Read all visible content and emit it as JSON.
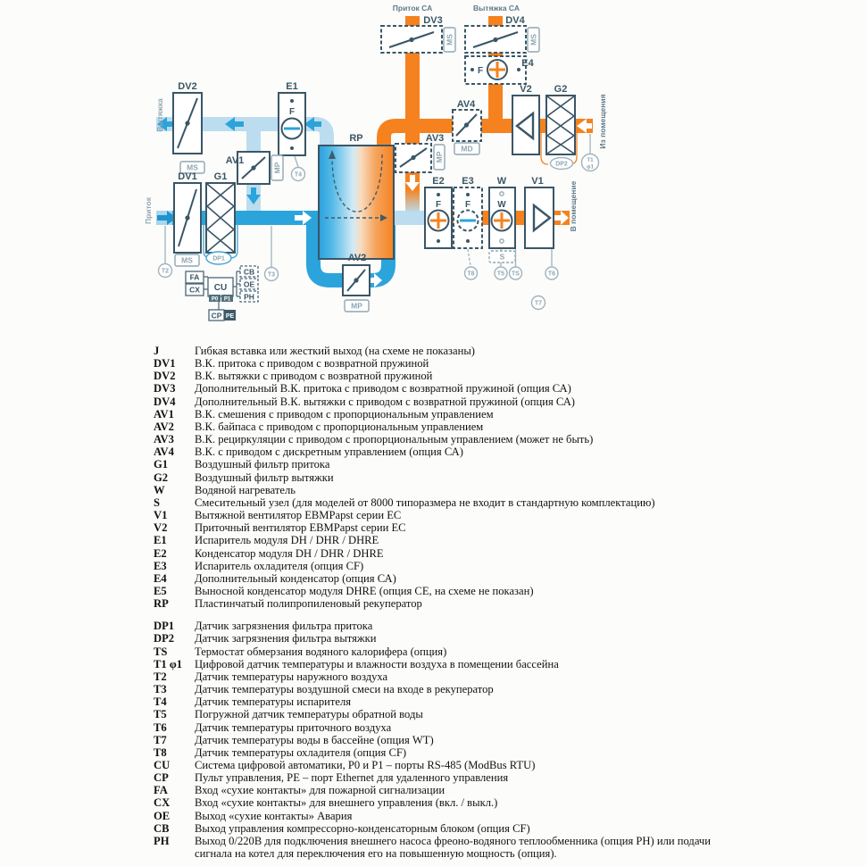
{
  "colors": {
    "pipe_orange": "#F5821F",
    "pipe_blue": "#2BA4DC",
    "pipe_pale_blue": "#BBDDEF",
    "outline_dark": "#3A5666",
    "outline_gray": "#8FA6B2"
  },
  "diagram": {
    "flow": {
      "supply_sa": "Приток СА",
      "exhaust_sa": "Вытяжка СА",
      "exhaust": "Вытяжка",
      "supply": "Приток",
      "from_room": "Из помещения",
      "to_room": "В помещение"
    },
    "labels": {
      "dv1": "DV1",
      "dv2": "DV2",
      "dv3": "DV3",
      "dv4": "DV4",
      "av1": "AV1",
      "av2": "AV2",
      "av3": "AV3",
      "av4": "AV4",
      "g1": "G1",
      "g2": "G2",
      "e1": "E1",
      "e2": "E2",
      "e3": "E3",
      "e4": "E4",
      "v1": "V1",
      "v2": "V2",
      "w": "W",
      "rp": "RP"
    },
    "ports": {
      "ms": "MS",
      "mp": "MP",
      "md": "MD",
      "s": "S"
    },
    "letters": {
      "f": "F",
      "w": "W"
    },
    "sensors": {
      "dp1": "DP1",
      "dp2": "DP2",
      "t1": "T1",
      "phi1": "φ1",
      "t2": "T2",
      "t3": "T3",
      "t4": "T4",
      "t5": "T5",
      "t6": "T6",
      "t7": "T7",
      "t8": "T8",
      "ts": "TS"
    },
    "control": {
      "cu": "CU",
      "cp": "CP",
      "fa": "FA",
      "cx": "CX",
      "cb": "CB",
      "oe": "OE",
      "ph": "PH",
      "p0": "P0",
      "p1": "P1",
      "pe": "PE"
    }
  },
  "legend": {
    "groups": [
      {
        "rows": [
          {
            "key": "J",
            "desc": "Гибкая вставка или жесткий выход (на схеме не показаны)"
          },
          {
            "key": "DV1",
            "desc": "В.К. притока с приводом с возвратной пружиной"
          },
          {
            "key": "DV2",
            "desc": "В.К. вытяжки с приводом с возвратной пружиной"
          },
          {
            "key": "DV3",
            "desc": "Дополнительный В.К. притока с приводом с возвратной пружиной (опция СА)"
          },
          {
            "key": "DV4",
            "desc": "Дополнительный В.К. вытяжки с приводом с возвратной пружиной (опция СА)"
          },
          {
            "key": "AV1",
            "desc": "В.К. смешения с приводом с пропорциональным управлением"
          },
          {
            "key": "AV2",
            "desc": "В.К. байпаса с приводом с пропорциональным управлением"
          },
          {
            "key": "AV3",
            "desc": "В.К. рециркуляции с приводом с пропорциональным управлением (может не быть)"
          },
          {
            "key": "AV4",
            "desc": "В.К. с приводом с дискретным управлением (опция СА)"
          },
          {
            "key": "G1",
            "desc": "Воздушный фильтр притока"
          },
          {
            "key": "G2",
            "desc": "Воздушный фильтр вытяжки"
          },
          {
            "key": "W",
            "desc": "Водяной нагреватель"
          },
          {
            "key": "S",
            "desc": "Смесительный узел (для моделей от 8000 типоразмера не входит в стандартную комплектацию)"
          },
          {
            "key": "V1",
            "desc": "Вытяжной вентилятор EBMPapst серии ЕС"
          },
          {
            "key": "V2",
            "desc": "Приточный вентилятор EBMPapst серии ЕС"
          },
          {
            "key": "E1",
            "desc": "Испаритель модуля DH / DHR / DHRE"
          },
          {
            "key": "E2",
            "desc": "Конденсатор модуля DH / DHR / DHRE"
          },
          {
            "key": "E3",
            "desc": "Испаритель охладителя (опция CF)"
          },
          {
            "key": "E4",
            "desc": "Дополнительный конденсатор (опция СА)"
          },
          {
            "key": "E5",
            "desc": "Выносной конденсатор модуля DHRE (опция СЕ, на схеме не показан)"
          },
          {
            "key": "RP",
            "desc": "Пластинчатый полипропиленовый рекуператор"
          }
        ]
      },
      {
        "rows": [
          {
            "key": "DP1",
            "desc": "Датчик загрязнения фильтра притока"
          },
          {
            "key": "DP2",
            "desc": "Датчик загрязнения фильтра вытяжки"
          },
          {
            "key": "TS",
            "desc": "Термостат обмерзания водяного калорифера (опция)"
          },
          {
            "key": "T1 φ1",
            "desc": "Цифровой датчик температуры и влажности воздуха в помещении бассейна"
          },
          {
            "key": "T2",
            "desc": "Датчик температуры наружного воздуха"
          },
          {
            "key": "T3",
            "desc": "Датчик температуры воздушной смеси на входе в рекуператор"
          },
          {
            "key": "T4",
            "desc": "Датчик температуры испарителя"
          },
          {
            "key": "T5",
            "desc": "Погружной датчик температуры обратной воды"
          },
          {
            "key": "T6",
            "desc": "Датчик температуры приточного воздуха"
          },
          {
            "key": "T7",
            "desc": "Датчик температуры воды в бассейне (опция WT)"
          },
          {
            "key": "T8",
            "desc": "Датчик температуры охладителя (опция CF)"
          },
          {
            "key": "CU",
            "desc": "Система цифровой автоматики, P0 и P1 – порты RS-485 (ModBus RTU)"
          },
          {
            "key": "CP",
            "desc": "Пульт управления, PE – порт Ethernet для удаленного управления"
          },
          {
            "key": "FA",
            "desc": "Вход «сухие контакты» для пожарной сигнализации"
          },
          {
            "key": "CX",
            "desc": "Вход «сухие контакты» для внешнего управления (вкл. / выкл.)"
          },
          {
            "key": "OE",
            "desc": "Выход «сухие контакты» Авария"
          },
          {
            "key": "CB",
            "desc": "Выход управления компрессорно-конденсаторным блоком (опция CF)"
          },
          {
            "key": "PH",
            "desc": "Выход 0/220В для подключения внешнего насоса фреоно-водяного теплообменника (опция РН) или подачи",
            "desc2": "сигнала на котел для переключения его на повышенную мощность (опция)."
          }
        ]
      }
    ]
  }
}
